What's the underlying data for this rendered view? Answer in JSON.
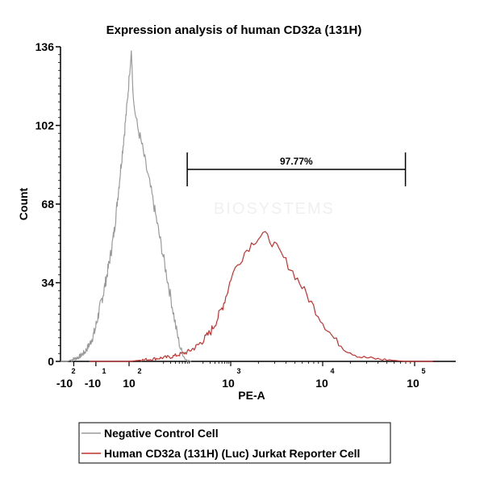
{
  "chart_data": {
    "type": "histogram",
    "title": "Expression analysis of human CD32a (131H)",
    "xlabel": "PE-A",
    "ylabel": "Count",
    "ylim": [
      0,
      136
    ],
    "yticks": [
      "0",
      "34",
      "68",
      "102",
      "136"
    ],
    "xticks": [
      {
        "base": "-10",
        "exp": "2"
      },
      {
        "base": "-10",
        "exp": "1"
      },
      {
        "base": "10",
        "exp": "2"
      },
      {
        "base": "10",
        "exp": "3"
      },
      {
        "base": "10",
        "exp": "4"
      },
      {
        "base": "10",
        "exp": "5"
      }
    ],
    "gate": {
      "label": "97.77%",
      "from_decade": 1.9,
      "to_decade": 4.9
    },
    "watermark": "BIOSYSTEMS",
    "series": [
      {
        "name": "Negative Control Cell",
        "color": "#9a9a9a",
        "points": [
          [
            -2.6,
            0
          ],
          [
            -2.3,
            0
          ],
          [
            -2.0,
            1
          ],
          [
            -1.75,
            2
          ],
          [
            -1.5,
            4
          ],
          [
            -1.25,
            8
          ],
          [
            -1.05,
            13
          ],
          [
            -0.85,
            22
          ],
          [
            -0.65,
            30
          ],
          [
            -0.45,
            40
          ],
          [
            -0.3,
            48
          ],
          [
            -0.15,
            58
          ],
          [
            0.0,
            72
          ],
          [
            0.15,
            86
          ],
          [
            0.3,
            100
          ],
          [
            0.42,
            112
          ],
          [
            0.5,
            122
          ],
          [
            0.55,
            136
          ],
          [
            0.6,
            112
          ],
          [
            0.68,
            102
          ],
          [
            0.78,
            94
          ],
          [
            0.9,
            82
          ],
          [
            1.05,
            68
          ],
          [
            1.2,
            54
          ],
          [
            1.35,
            40
          ],
          [
            1.5,
            26
          ],
          [
            1.62,
            14
          ],
          [
            1.72,
            6
          ],
          [
            1.85,
            1
          ],
          [
            2.0,
            0
          ]
        ]
      },
      {
        "name": "Human CD32a (131H) (Luc) Jurkat Reporter Cell",
        "color": "#c0322f",
        "points": [
          [
            -1.3,
            0
          ],
          [
            -0.5,
            0
          ],
          [
            0.5,
            0
          ],
          [
            1.0,
            1
          ],
          [
            1.5,
            2
          ],
          [
            1.9,
            4
          ],
          [
            2.1,
            6
          ],
          [
            2.3,
            9
          ],
          [
            2.5,
            13
          ],
          [
            2.65,
            18
          ],
          [
            2.8,
            24
          ],
          [
            2.95,
            32
          ],
          [
            3.05,
            40
          ],
          [
            3.15,
            47
          ],
          [
            3.25,
            52
          ],
          [
            3.35,
            55
          ],
          [
            3.42,
            53
          ],
          [
            3.5,
            49
          ],
          [
            3.62,
            42
          ],
          [
            3.75,
            34
          ],
          [
            3.88,
            25
          ],
          [
            4.0,
            17
          ],
          [
            4.12,
            10
          ],
          [
            4.25,
            5
          ],
          [
            4.4,
            2
          ],
          [
            4.6,
            1
          ],
          [
            4.9,
            0
          ],
          [
            5.2,
            0
          ]
        ]
      }
    ]
  }
}
